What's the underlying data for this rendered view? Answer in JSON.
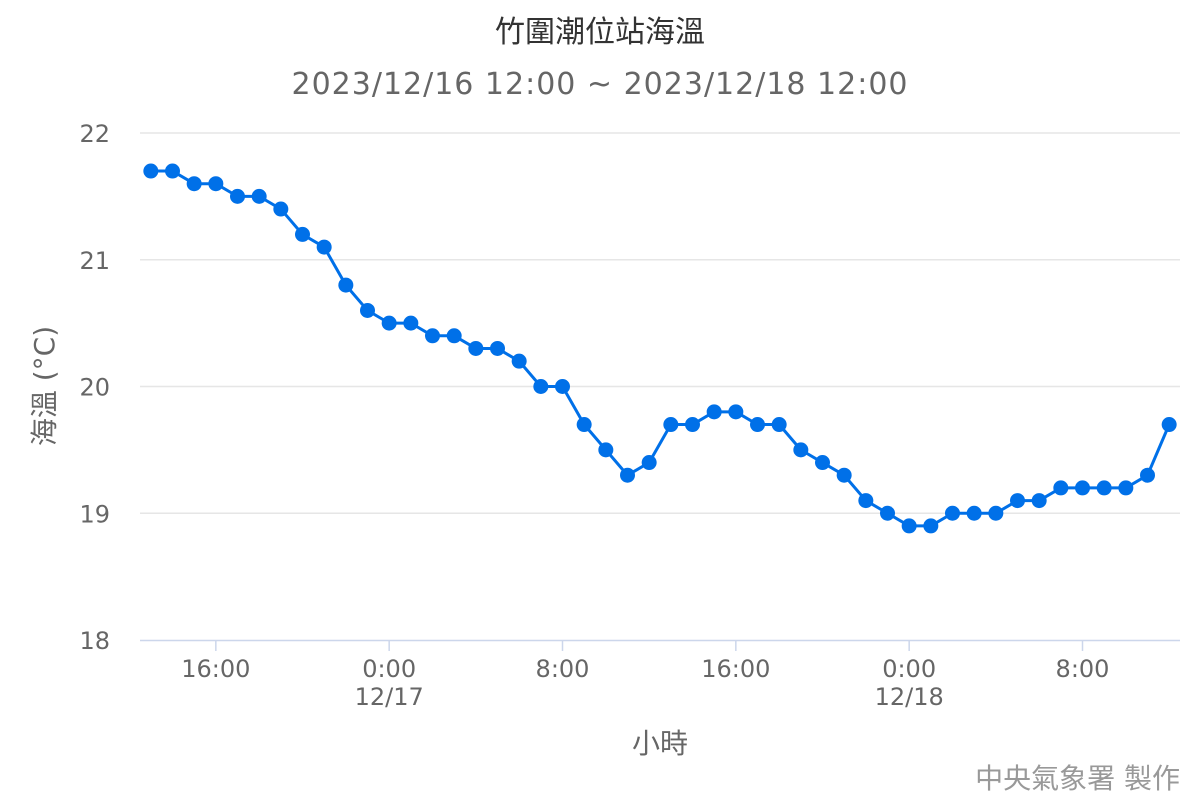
{
  "chart_data": {
    "type": "line",
    "title": "竹圍潮位站海溫",
    "subtitle": "2023/12/16 12:00 ~ 2023/12/18 12:00",
    "xlabel": "小時",
    "ylabel": "海溫 (°C)",
    "credit": "中央氣象署 製作",
    "ylim": [
      18,
      22
    ],
    "yticks": [
      "18",
      "19",
      "20",
      "21",
      "22"
    ],
    "xlim": [
      "2023-12-16T12:30",
      "2023-12-18T12:30"
    ],
    "xticks": [
      {
        "time": "2023-12-16T16:00",
        "label": "16:00",
        "date": ""
      },
      {
        "time": "2023-12-17T00:00",
        "label": "0:00",
        "date": "12/17"
      },
      {
        "time": "2023-12-17T08:00",
        "label": "8:00",
        "date": ""
      },
      {
        "time": "2023-12-17T16:00",
        "label": "16:00",
        "date": ""
      },
      {
        "time": "2023-12-18T00:00",
        "label": "0:00",
        "date": "12/18"
      },
      {
        "time": "2023-12-18T08:00",
        "label": "8:00",
        "date": ""
      }
    ],
    "grid": true,
    "color": "#0070e8",
    "series": [
      {
        "x": [
          "2023-12-16T13:00",
          "2023-12-16T14:00",
          "2023-12-16T15:00",
          "2023-12-16T16:00",
          "2023-12-16T17:00",
          "2023-12-16T18:00",
          "2023-12-16T19:00",
          "2023-12-16T20:00",
          "2023-12-16T21:00",
          "2023-12-16T22:00",
          "2023-12-16T23:00",
          "2023-12-17T00:00",
          "2023-12-17T01:00",
          "2023-12-17T02:00",
          "2023-12-17T03:00",
          "2023-12-17T04:00",
          "2023-12-17T05:00",
          "2023-12-17T06:00",
          "2023-12-17T07:00",
          "2023-12-17T08:00",
          "2023-12-17T09:00",
          "2023-12-17T10:00",
          "2023-12-17T11:00",
          "2023-12-17T12:00",
          "2023-12-17T13:00",
          "2023-12-17T14:00",
          "2023-12-17T15:00",
          "2023-12-17T16:00",
          "2023-12-17T17:00",
          "2023-12-17T18:00",
          "2023-12-17T19:00",
          "2023-12-17T20:00",
          "2023-12-17T21:00",
          "2023-12-17T22:00",
          "2023-12-17T23:00",
          "2023-12-18T00:00",
          "2023-12-18T01:00",
          "2023-12-18T02:00",
          "2023-12-18T03:00",
          "2023-12-18T04:00",
          "2023-12-18T05:00",
          "2023-12-18T06:00",
          "2023-12-18T07:00",
          "2023-12-18T08:00",
          "2023-12-18T09:00",
          "2023-12-18T10:00",
          "2023-12-18T11:00",
          "2023-12-18T12:00"
        ],
        "y": [
          21.7,
          21.7,
          21.6,
          21.6,
          21.5,
          21.5,
          21.4,
          21.2,
          21.1,
          20.8,
          20.6,
          20.5,
          20.5,
          20.4,
          20.4,
          20.3,
          20.3,
          20.2,
          20.0,
          20.0,
          19.7,
          19.5,
          19.3,
          19.4,
          19.7,
          19.7,
          19.8,
          19.8,
          19.7,
          19.7,
          19.5,
          19.4,
          19.3,
          19.1,
          19.0,
          18.9,
          18.9,
          19.0,
          19.0,
          19.0,
          19.1,
          19.1,
          19.2,
          19.2,
          19.2,
          19.2,
          19.3,
          19.7
        ]
      }
    ]
  }
}
